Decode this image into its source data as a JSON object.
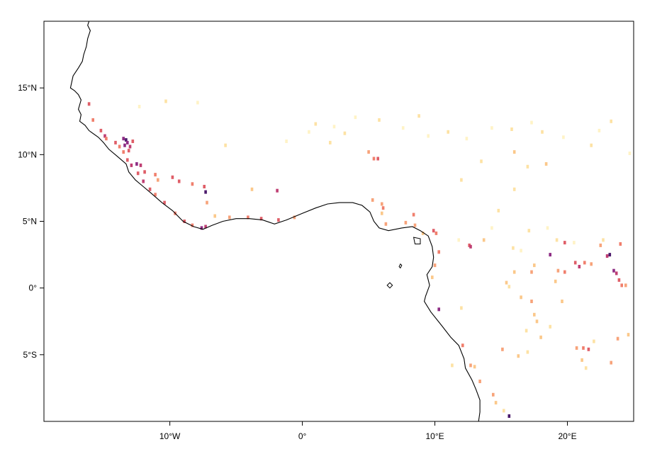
{
  "map": {
    "lon_range": [
      -19.5,
      25.0
    ],
    "lat_range": [
      -10.0,
      20.0
    ],
    "x_ticks": [
      {
        "lon": -10,
        "label": "10°W"
      },
      {
        "lon": 0,
        "label": "0°"
      },
      {
        "lon": 10,
        "label": "10°E"
      },
      {
        "lon": 20,
        "label": "20°E"
      }
    ],
    "y_ticks": [
      {
        "lat": 15,
        "label": "15°N"
      },
      {
        "lat": 10,
        "label": "10°N"
      },
      {
        "lat": 5,
        "label": "5°N"
      },
      {
        "lat": 0,
        "label": "0°"
      },
      {
        "lat": -5,
        "label": "5°S"
      }
    ],
    "coastline_color": "#000000",
    "palette": {
      "1": "#fff3c6",
      "2": "#fde2a4",
      "3": "#fbc88a",
      "4": "#f7a37a",
      "5": "#f07f6d",
      "6": "#df5e68",
      "7": "#bf3f73",
      "8": "#8e2d84",
      "9": "#4b1a6c"
    },
    "coastline": [
      [
        -16.1,
        20.0
      ],
      [
        -16.2,
        19.7
      ],
      [
        -16.0,
        19.3
      ],
      [
        -16.2,
        18.7
      ],
      [
        -16.3,
        18.1
      ],
      [
        -16.5,
        17.5
      ],
      [
        -16.6,
        17.0
      ],
      [
        -16.9,
        16.5
      ],
      [
        -17.3,
        15.9
      ],
      [
        -17.5,
        15.0
      ],
      [
        -17.2,
        14.8
      ],
      [
        -16.9,
        14.5
      ],
      [
        -16.7,
        14.1
      ],
      [
        -16.9,
        13.4
      ],
      [
        -16.7,
        13.0
      ],
      [
        -16.8,
        12.5
      ],
      [
        -16.4,
        12.2
      ],
      [
        -16.1,
        11.8
      ],
      [
        -15.4,
        11.3
      ],
      [
        -15.0,
        10.9
      ],
      [
        -14.6,
        10.4
      ],
      [
        -14.0,
        9.9
      ],
      [
        -13.3,
        9.3
      ],
      [
        -13.1,
        8.7
      ],
      [
        -12.6,
        8.1
      ],
      [
        -12.0,
        7.6
      ],
      [
        -11.4,
        7.1
      ],
      [
        -10.6,
        6.4
      ],
      [
        -9.8,
        5.8
      ],
      [
        -9.0,
        5.0
      ],
      [
        -8.2,
        4.6
      ],
      [
        -7.5,
        4.4
      ],
      [
        -6.8,
        4.7
      ],
      [
        -6.0,
        5.0
      ],
      [
        -5.0,
        5.2
      ],
      [
        -4.0,
        5.2
      ],
      [
        -3.0,
        5.1
      ],
      [
        -2.1,
        4.8
      ],
      [
        -1.2,
        5.1
      ],
      [
        0.0,
        5.6
      ],
      [
        1.0,
        6.0
      ],
      [
        1.9,
        6.3
      ],
      [
        2.8,
        6.4
      ],
      [
        3.8,
        6.4
      ],
      [
        4.5,
        6.2
      ],
      [
        5.1,
        5.7
      ],
      [
        5.4,
        5.0
      ],
      [
        5.8,
        4.5
      ],
      [
        6.5,
        4.3
      ],
      [
        7.5,
        4.5
      ],
      [
        8.3,
        4.6
      ],
      [
        8.9,
        4.3
      ],
      [
        9.5,
        3.9
      ],
      [
        9.8,
        3.1
      ],
      [
        9.9,
        2.3
      ],
      [
        9.8,
        1.6
      ],
      [
        9.4,
        1.0
      ],
      [
        9.6,
        0.2
      ],
      [
        9.3,
        -0.6
      ],
      [
        9.2,
        -1.0
      ],
      [
        9.7,
        -1.8
      ],
      [
        10.5,
        -2.8
      ],
      [
        11.2,
        -3.7
      ],
      [
        11.8,
        -4.3
      ],
      [
        12.2,
        -5.3
      ],
      [
        12.3,
        -6.0
      ],
      [
        12.8,
        -6.9
      ],
      [
        13.1,
        -7.6
      ],
      [
        13.4,
        -8.4
      ],
      [
        13.4,
        -9.3
      ],
      [
        13.3,
        -10.0
      ]
    ],
    "islands": [
      [
        [
          8.4,
          3.8
        ],
        [
          8.9,
          3.7
        ],
        [
          8.9,
          3.3
        ],
        [
          8.5,
          3.3
        ],
        [
          8.4,
          3.8
        ]
      ],
      [
        [
          7.4,
          1.8
        ],
        [
          7.5,
          1.7
        ],
        [
          7.4,
          1.5
        ],
        [
          7.3,
          1.6
        ],
        [
          7.4,
          1.8
        ]
      ],
      [
        [
          6.6,
          0.4
        ],
        [
          6.8,
          0.2
        ],
        [
          6.6,
          -0.0
        ],
        [
          6.4,
          0.2
        ],
        [
          6.6,
          0.4
        ]
      ]
    ],
    "pixels": [
      [
        -16.1,
        13.8,
        6
      ],
      [
        -15.8,
        12.6,
        5
      ],
      [
        -15.2,
        11.8,
        6
      ],
      [
        -14.9,
        11.4,
        7
      ],
      [
        -14.8,
        11.2,
        5
      ],
      [
        -14.1,
        10.9,
        6
      ],
      [
        -13.8,
        10.6,
        5
      ],
      [
        -13.5,
        10.2,
        5
      ],
      [
        -13.2,
        9.6,
        6
      ],
      [
        -12.9,
        9.2,
        7
      ],
      [
        -12.4,
        8.6,
        6
      ],
      [
        -12.0,
        8.0,
        7
      ],
      [
        -11.5,
        7.4,
        6
      ],
      [
        -11.1,
        7.0,
        5
      ],
      [
        -10.4,
        6.4,
        6
      ],
      [
        -9.6,
        5.6,
        5
      ],
      [
        -8.9,
        5.0,
        6
      ],
      [
        -8.3,
        4.7,
        5
      ],
      [
        -7.6,
        4.5,
        8
      ],
      [
        -7.3,
        4.6,
        7
      ],
      [
        -13.5,
        11.2,
        8
      ],
      [
        -13.3,
        11.1,
        9
      ],
      [
        -13.2,
        10.9,
        8
      ],
      [
        -13.4,
        10.7,
        8
      ],
      [
        -13.0,
        10.6,
        7
      ],
      [
        -12.8,
        11.0,
        6
      ],
      [
        -13.1,
        10.3,
        6
      ],
      [
        -12.5,
        9.3,
        8
      ],
      [
        -12.2,
        9.2,
        7
      ],
      [
        -11.9,
        8.7,
        6
      ],
      [
        -11.1,
        8.5,
        5
      ],
      [
        -10.9,
        8.1,
        4
      ],
      [
        -9.3,
        8.0,
        6
      ],
      [
        -8.3,
        7.8,
        5
      ],
      [
        -7.3,
        7.2,
        9
      ],
      [
        -7.4,
        7.6,
        6
      ],
      [
        -9.8,
        8.3,
        6
      ],
      [
        -7.2,
        6.4,
        4
      ],
      [
        -6.6,
        5.4,
        3
      ],
      [
        -5.5,
        5.3,
        4
      ],
      [
        -4.1,
        5.3,
        5
      ],
      [
        -3.1,
        5.2,
        6
      ],
      [
        -1.9,
        7.3,
        7
      ],
      [
        -1.8,
        5.1,
        6
      ],
      [
        -0.6,
        5.3,
        4
      ],
      [
        -3.8,
        7.4,
        3
      ],
      [
        -10.3,
        14.0,
        2
      ],
      [
        -7.9,
        13.9,
        1
      ],
      [
        -12.3,
        13.6,
        1
      ],
      [
        0.5,
        11.7,
        1
      ],
      [
        1.0,
        12.3,
        2
      ],
      [
        2.4,
        12.1,
        1
      ],
      [
        3.2,
        11.6,
        2
      ],
      [
        4.0,
        12.8,
        1
      ],
      [
        5.8,
        12.6,
        2
      ],
      [
        7.6,
        12.0,
        1
      ],
      [
        8.8,
        12.9,
        2
      ],
      [
        9.5,
        11.4,
        1
      ],
      [
        11.0,
        11.7,
        2
      ],
      [
        12.4,
        11.2,
        1
      ],
      [
        14.3,
        12.0,
        1
      ],
      [
        15.8,
        11.9,
        2
      ],
      [
        17.3,
        12.4,
        1
      ],
      [
        18.1,
        11.7,
        2
      ],
      [
        19.7,
        11.3,
        1
      ],
      [
        21.8,
        10.7,
        2
      ],
      [
        22.4,
        11.8,
        1
      ],
      [
        23.3,
        12.5,
        2
      ],
      [
        24.7,
        10.1,
        1
      ],
      [
        -5.8,
        10.7,
        2
      ],
      [
        -1.2,
        11.0,
        1
      ],
      [
        2.1,
        10.9,
        2
      ],
      [
        5.0,
        10.2,
        4
      ],
      [
        5.4,
        9.7,
        5
      ],
      [
        5.7,
        9.7,
        6
      ],
      [
        5.3,
        6.6,
        4
      ],
      [
        6.0,
        6.3,
        4
      ],
      [
        6.1,
        6.0,
        5
      ],
      [
        6.0,
        5.6,
        3
      ],
      [
        6.3,
        4.8,
        4
      ],
      [
        8.4,
        5.5,
        5
      ],
      [
        7.8,
        4.9,
        4
      ],
      [
        8.5,
        4.7,
        4
      ],
      [
        9.1,
        4.1,
        3
      ],
      [
        9.9,
        4.3,
        6
      ],
      [
        10.1,
        4.1,
        5
      ],
      [
        10.3,
        2.7,
        5
      ],
      [
        12.6,
        3.2,
        6
      ],
      [
        12.7,
        3.1,
        7
      ],
      [
        10.0,
        1.7,
        4
      ],
      [
        9.8,
        0.8,
        3
      ],
      [
        10.3,
        -1.6,
        8
      ],
      [
        12.1,
        -4.3,
        5
      ],
      [
        12.7,
        -5.8,
        4
      ],
      [
        13.4,
        -7.0,
        4
      ],
      [
        14.4,
        -8.0,
        4
      ],
      [
        15.6,
        -9.6,
        9
      ],
      [
        12.0,
        8.1,
        2
      ],
      [
        13.5,
        9.5,
        2
      ],
      [
        16.0,
        10.2,
        3
      ],
      [
        17.0,
        9.1,
        2
      ],
      [
        18.4,
        9.3,
        3
      ],
      [
        16.0,
        7.4,
        2
      ],
      [
        14.8,
        5.8,
        2
      ],
      [
        14.3,
        4.5,
        1
      ],
      [
        13.7,
        3.6,
        3
      ],
      [
        15.9,
        3.0,
        2
      ],
      [
        16.5,
        2.8,
        1
      ],
      [
        17.1,
        4.3,
        2
      ],
      [
        17.5,
        1.7,
        3
      ],
      [
        17.3,
        1.2,
        4
      ],
      [
        16.0,
        1.2,
        3
      ],
      [
        15.4,
        0.4,
        3
      ],
      [
        15.6,
        0.1,
        2
      ],
      [
        16.5,
        -0.7,
        3
      ],
      [
        17.3,
        -1.0,
        4
      ],
      [
        17.5,
        -2.0,
        3
      ],
      [
        17.7,
        -2.5,
        3
      ],
      [
        16.9,
        -3.2,
        2
      ],
      [
        18.0,
        -3.7,
        3
      ],
      [
        15.1,
        -4.6,
        4
      ],
      [
        16.3,
        -5.1,
        3
      ],
      [
        17.0,
        -4.8,
        2
      ],
      [
        18.7,
        -2.9,
        2
      ],
      [
        19.6,
        -1.0,
        3
      ],
      [
        19.1,
        0.5,
        3
      ],
      [
        19.3,
        1.3,
        4
      ],
      [
        19.8,
        1.2,
        5
      ],
      [
        20.6,
        1.9,
        6
      ],
      [
        20.9,
        1.6,
        7
      ],
      [
        21.3,
        1.9,
        5
      ],
      [
        21.8,
        1.8,
        4
      ],
      [
        22.5,
        3.2,
        4
      ],
      [
        23.0,
        2.4,
        7
      ],
      [
        23.2,
        2.5,
        9
      ],
      [
        23.5,
        1.3,
        8
      ],
      [
        23.7,
        1.1,
        7
      ],
      [
        23.9,
        0.6,
        6
      ],
      [
        24.1,
        0.2,
        5
      ],
      [
        24.4,
        0.2,
        4
      ],
      [
        19.8,
        3.4,
        6
      ],
      [
        18.7,
        2.5,
        8
      ],
      [
        21.2,
        -4.5,
        5
      ],
      [
        21.6,
        -4.6,
        6
      ],
      [
        20.7,
        -4.5,
        4
      ],
      [
        21.1,
        -5.4,
        3
      ],
      [
        21.4,
        -6.0,
        2
      ],
      [
        23.3,
        -5.6,
        4
      ],
      [
        23.8,
        -3.8,
        4
      ],
      [
        24.0,
        3.3,
        5
      ],
      [
        24.6,
        -3.5,
        3
      ],
      [
        22.0,
        -4.0,
        2
      ],
      [
        14.6,
        -8.6,
        3
      ],
      [
        15.2,
        -9.2,
        2
      ],
      [
        13.0,
        -5.9,
        3
      ],
      [
        11.3,
        -5.8,
        2
      ],
      [
        11.8,
        3.6,
        1
      ],
      [
        19.2,
        3.6,
        2
      ],
      [
        20.5,
        3.4,
        1
      ],
      [
        22.7,
        3.6,
        2
      ],
      [
        18.5,
        4.5,
        1
      ],
      [
        12.0,
        -1.5,
        2
      ]
    ]
  }
}
